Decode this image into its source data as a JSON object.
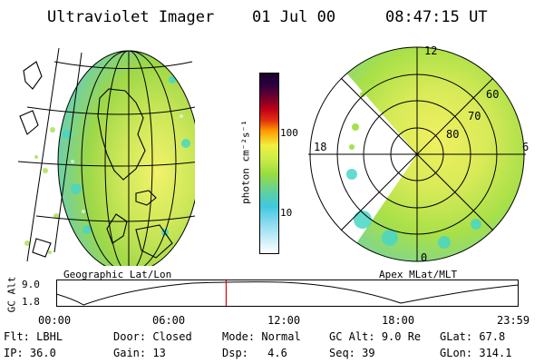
{
  "header": {
    "instrument": "Ultraviolet Imager",
    "date": "01 Jul 00",
    "time": "08:47:15 UT"
  },
  "colorbar": {
    "unit_label": "photon cm⁻²s⁻¹",
    "ticks": [
      "100",
      "10"
    ],
    "scale": "log"
  },
  "left_map": {
    "label": "Geographic Lat/Lon"
  },
  "right_map": {
    "label": "Apex MLat/MLT",
    "mlt_labels": {
      "top": "12",
      "left": "18",
      "right": "6",
      "bottom": "0"
    },
    "lat_labels": [
      "60",
      "70",
      "80"
    ]
  },
  "altitude_plot": {
    "ylabel": "GC Alt",
    "yticks": [
      "9.0",
      "1.8"
    ],
    "xticks": [
      "00:00",
      "06:00",
      "12:00",
      "18:00",
      "23:59"
    ],
    "current_time_fraction": 0.367
  },
  "status": {
    "row1": [
      {
        "label": "Flt:",
        "value": "LBHL"
      },
      {
        "label": "Door:",
        "value": "Closed"
      },
      {
        "label": "Mode:",
        "value": "Normal"
      },
      {
        "label": "GC Alt:",
        "value": "9.0 Re"
      },
      {
        "label": "GLat:",
        "value": "67.8"
      }
    ],
    "row2": [
      {
        "label": "IP:",
        "value": "36.0"
      },
      {
        "label": "Gain:",
        "value": "13"
      },
      {
        "label": "Dsp:",
        "value": "4.6"
      },
      {
        "label": "Seq:",
        "value": "39"
      },
      {
        "label": "GLon:",
        "value": "314.1"
      }
    ]
  },
  "colors": {
    "current_time_marker": "#dd0000",
    "aurora_green": "#a8e048",
    "aurora_yellow": "#f0f060",
    "aurora_cyan": "#40d8c8"
  }
}
